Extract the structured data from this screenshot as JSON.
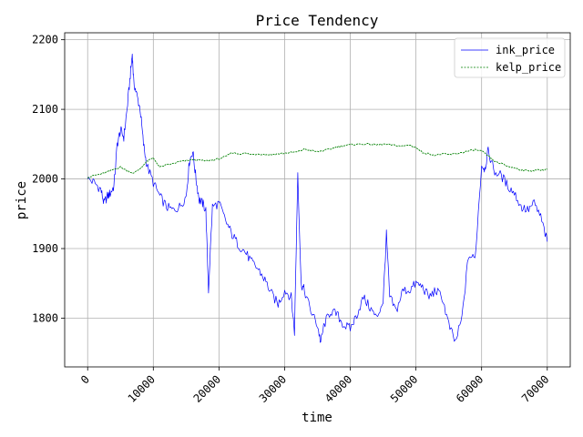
{
  "chart_data": {
    "type": "line",
    "title": "Price Tendency",
    "xlabel": "time",
    "ylabel": "price",
    "xlim": [
      -3500,
      73500
    ],
    "ylim": [
      1730,
      2210
    ],
    "xticks": [
      0,
      10000,
      20000,
      30000,
      40000,
      50000,
      60000,
      70000
    ],
    "yticks": [
      1800,
      1900,
      2000,
      2100,
      2200
    ],
    "grid": true,
    "legend_position": "top-right",
    "series": [
      {
        "name": "ink_price",
        "color": "#0000ff",
        "style": "solid",
        "x": [
          0,
          1000,
          2000,
          2500,
          3000,
          3500,
          4000,
          4500,
          5000,
          5500,
          6000,
          6500,
          6800,
          7000,
          7500,
          8000,
          8500,
          9000,
          10000,
          11000,
          12000,
          13000,
          14000,
          15000,
          15500,
          16000,
          16500,
          17000,
          17500,
          18000,
          18400,
          19000,
          20000,
          21000,
          22000,
          23000,
          24000,
          25000,
          26000,
          27000,
          28000,
          29000,
          30000,
          31000,
          31500,
          32000,
          32500,
          33000,
          34000,
          35000,
          35500,
          36000,
          37000,
          38000,
          39000,
          40000,
          41000,
          42000,
          43000,
          44000,
          45000,
          45500,
          46000,
          47000,
          48000,
          49000,
          50000,
          51000,
          52000,
          53000,
          54000,
          55000,
          56000,
          57000,
          58000,
          59000,
          60000,
          60500,
          61000,
          62000,
          63000,
          64000,
          65000,
          66000,
          67000,
          68000,
          69000,
          70000
        ],
        "y": [
          2000,
          1995,
          1985,
          1965,
          1975,
          1980,
          1990,
          2050,
          2070,
          2060,
          2100,
          2150,
          2180,
          2140,
          2120,
          2100,
          2050,
          2020,
          1995,
          1975,
          1960,
          1955,
          1960,
          1975,
          2025,
          2040,
          2000,
          1970,
          1965,
          1955,
          1840,
          1960,
          1965,
          1940,
          1920,
          1905,
          1895,
          1880,
          1870,
          1855,
          1835,
          1820,
          1840,
          1830,
          1780,
          2010,
          1850,
          1840,
          1810,
          1790,
          1765,
          1790,
          1810,
          1805,
          1790,
          1785,
          1805,
          1830,
          1815,
          1800,
          1825,
          1920,
          1830,
          1810,
          1840,
          1840,
          1850,
          1845,
          1830,
          1840,
          1830,
          1790,
          1765,
          1800,
          1890,
          1885,
          2020,
          2015,
          2040,
          2010,
          2005,
          1990,
          1980,
          1960,
          1955,
          1965,
          1945,
          1910
        ]
      },
      {
        "name": "kelp_price",
        "color": "#008000",
        "style": "dashed",
        "x": [
          0,
          1000,
          2000,
          3000,
          4000,
          5000,
          6000,
          7000,
          8000,
          9000,
          10000,
          11000,
          12000,
          13000,
          14000,
          15000,
          16000,
          17000,
          18000,
          19000,
          20000,
          21000,
          22000,
          23000,
          24000,
          25000,
          26000,
          27000,
          28000,
          29000,
          30000,
          31000,
          32000,
          33000,
          34000,
          35000,
          36000,
          37000,
          38000,
          39000,
          40000,
          41000,
          42000,
          43000,
          44000,
          45000,
          46000,
          47000,
          48000,
          49000,
          50000,
          51000,
          52000,
          53000,
          54000,
          55000,
          56000,
          57000,
          58000,
          59000,
          60000,
          61000,
          62000,
          63000,
          64000,
          65000,
          66000,
          67000,
          68000,
          69000,
          70000
        ],
        "y": [
          2002,
          2005,
          2007,
          2010,
          2014,
          2017,
          2012,
          2008,
          2015,
          2025,
          2030,
          2017,
          2020,
          2022,
          2025,
          2026,
          2028,
          2027,
          2026,
          2027,
          2029,
          2032,
          2038,
          2036,
          2037,
          2035,
          2036,
          2035,
          2035,
          2036,
          2037,
          2038,
          2039,
          2043,
          2041,
          2039,
          2041,
          2043,
          2046,
          2048,
          2049,
          2050,
          2050,
          2050,
          2049,
          2050,
          2049,
          2048,
          2047,
          2049,
          2045,
          2038,
          2036,
          2034,
          2036,
          2035,
          2036,
          2038,
          2040,
          2042,
          2040,
          2033,
          2025,
          2022,
          2018,
          2016,
          2013,
          2012,
          2012,
          2013,
          2014
        ]
      }
    ]
  }
}
